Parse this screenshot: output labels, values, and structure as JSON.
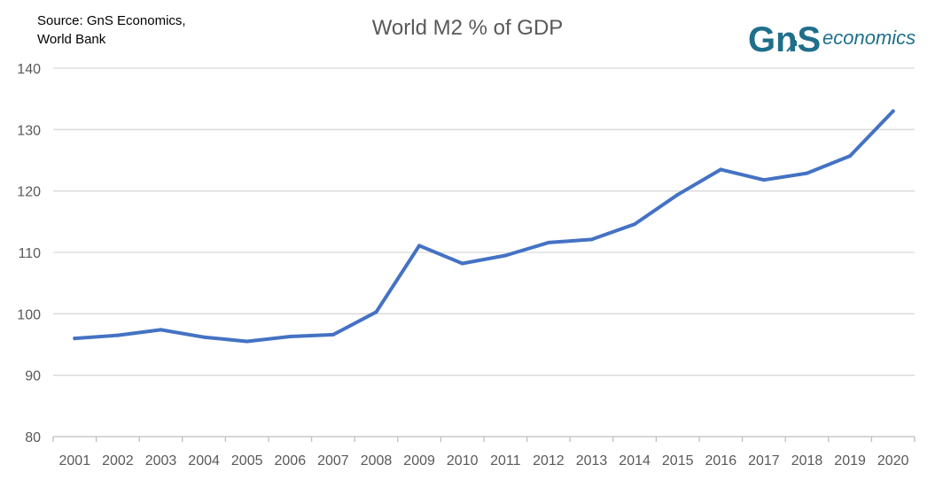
{
  "source": {
    "line1": "Source: GnS Economics,",
    "line2": "World Bank"
  },
  "logo": {
    "monogram": "GnS",
    "wordmark": "economics",
    "color": "#1f6f8b"
  },
  "colors": {
    "line": "#4472c4",
    "grid": "#d9d9d9",
    "axis": "#bfbfbf",
    "text": "#595959"
  },
  "chart_data": {
    "type": "line",
    "title": "World M2 % of GDP",
    "xlabel": "",
    "ylabel": "",
    "categories": [
      "2001",
      "2002",
      "2003",
      "2004",
      "2005",
      "2006",
      "2007",
      "2008",
      "2009",
      "2010",
      "2011",
      "2012",
      "2013",
      "2014",
      "2015",
      "2016",
      "2017",
      "2018",
      "2019",
      "2020"
    ],
    "series": [
      {
        "values": [
          96.0,
          96.5,
          97.4,
          96.2,
          95.5,
          96.3,
          96.6,
          100.3,
          111.1,
          108.2,
          109.5,
          111.6,
          112.1,
          114.6,
          119.4,
          123.5,
          121.8,
          122.9,
          125.7,
          133.0
        ]
      }
    ],
    "ylim": [
      80,
      140
    ],
    "yticks": [
      80,
      90,
      100,
      110,
      120,
      130,
      140
    ],
    "grid": true,
    "legend": "none"
  }
}
